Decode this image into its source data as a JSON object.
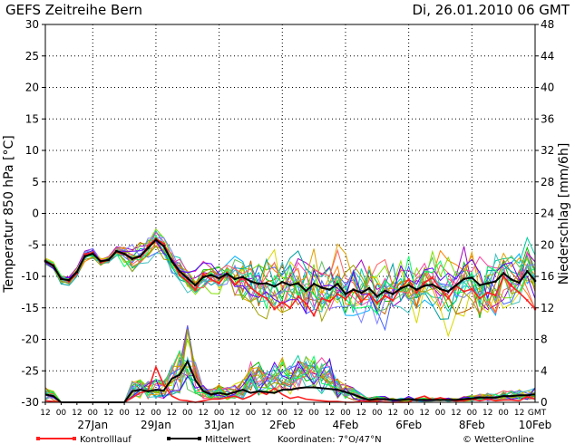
{
  "chart_data": {
    "type": "line",
    "title": "GEFS Zeitreihe Bern",
    "run_label": "Di, 26.01.2010 06 GMT",
    "ylabel_left": "Temperatur 850 hPa [°C]",
    "ylabel_right": "Niederschlag [mm/6h]",
    "ylim_left": [
      -30,
      30
    ],
    "ylim_right": [
      0,
      48
    ],
    "y_ticks_left": [
      30,
      25,
      20,
      15,
      10,
      5,
      0,
      -5,
      -10,
      -15,
      -20,
      -25,
      -30
    ],
    "y_ticks_right": [
      48,
      44,
      40,
      36,
      32,
      28,
      24,
      20,
      16,
      12,
      8,
      4,
      0
    ],
    "x_range_hours": [
      0,
      372
    ],
    "hour_labels": [
      "12",
      "00",
      "12",
      "00",
      "12",
      "00",
      "12",
      "00",
      "12",
      "00",
      "12",
      "00",
      "12",
      "00",
      "12",
      "00",
      "12",
      "00",
      "12",
      "00",
      "12",
      "00",
      "12",
      "00",
      "12",
      "00",
      "12",
      "00",
      "12",
      "00",
      "12"
    ],
    "end_label": "GMT",
    "date_labels": [
      "27Jan",
      "29Jan",
      "31Jan",
      "2Feb",
      "4Feb",
      "6Feb",
      "8Feb",
      "10Feb"
    ],
    "grid": true,
    "series": [
      {
        "name": "Kontrolllauf",
        "color": "#ff2020",
        "temperature": [
          -7.5,
          -8.2,
          -10.3,
          -10.8,
          -9.5,
          -6.5,
          -6.2,
          -7.8,
          -7.4,
          -6.1,
          -6.5,
          -7.3,
          -6.9,
          -5.2,
          -4.0,
          -4.8,
          -7.5,
          -9.8,
          -10.8,
          -12.1,
          -9.6,
          -10.5,
          -11.1,
          -9.5,
          -11.3,
          -10.2,
          -11.8,
          -12.8,
          -13.5,
          -15.2,
          -14.1,
          -15.0,
          -13.2,
          -14.3,
          -16.2,
          -13.5,
          -14.0,
          -12.8,
          -13.6,
          -12.1,
          -14.0,
          -12.8,
          -14.2,
          -13.1,
          -13.8,
          -11.8,
          -10.5,
          -12.6,
          -11.0,
          -10.2,
          -12.0,
          -13.5,
          -11.5,
          -12.4,
          -12.0,
          -13.5,
          -12.6,
          -13.0,
          -10.0,
          -11.5,
          -12.6,
          -13.8,
          -15.2
        ],
        "precipitation": [
          0.2,
          0.1,
          0,
          0,
          0,
          0,
          0,
          0,
          0,
          0,
          0,
          0.6,
          1.2,
          1.5,
          4.5,
          2.2,
          0.8,
          0.3,
          0.2,
          0,
          0.2,
          0.4,
          0.4,
          0.6,
          0.8,
          0.4,
          0.8,
          1.4,
          1.0,
          1.8,
          1.0,
          0.5,
          0.7,
          0.4,
          0.3,
          0.2,
          0.1,
          0.1,
          0,
          0,
          0.2,
          0.1,
          0.1,
          0,
          0,
          0,
          0,
          0.5,
          0.8,
          0.3,
          0.6,
          0.3,
          0.2,
          0.2,
          0.4,
          0.2,
          0.4,
          0.2,
          0.3,
          0.3,
          0.2,
          0.7,
          0.4
        ]
      },
      {
        "name": "Mittelwert",
        "color": "#000000",
        "temperature": [
          -7.6,
          -8.3,
          -10.4,
          -10.6,
          -9.3,
          -6.8,
          -6.4,
          -7.6,
          -7.4,
          -6.0,
          -6.4,
          -7.2,
          -6.8,
          -5.5,
          -4.2,
          -5.2,
          -7.6,
          -9.2,
          -10.3,
          -11.4,
          -10.1,
          -9.8,
          -10.3,
          -9.6,
          -10.4,
          -10.1,
          -10.8,
          -11.2,
          -11.1,
          -11.6,
          -10.9,
          -11.4,
          -11.1,
          -12.3,
          -11.2,
          -11.8,
          -12.1,
          -11.2,
          -12.8,
          -12.1,
          -12.6,
          -11.9,
          -13.2,
          -12.3,
          -12.8,
          -11.9,
          -11.4,
          -12.1,
          -11.5,
          -11.3,
          -12.0,
          -12.4,
          -11.4,
          -10.4,
          -10.2,
          -11.4,
          -11.1,
          -10.8,
          -9.5,
          -10.5,
          -11.0,
          -9.2,
          -10.7
        ],
        "precipitation": [
          1.0,
          0.8,
          0,
          0,
          0,
          0,
          0,
          0,
          0,
          0,
          0,
          1.4,
          1.6,
          1.4,
          1.6,
          1.5,
          3.0,
          3.5,
          5.2,
          2.8,
          1.4,
          1.0,
          1.2,
          1.0,
          1.3,
          1.6,
          1.2,
          1.4,
          1.3,
          1.2,
          1.6,
          1.6,
          1.8,
          1.9,
          1.9,
          1.8,
          1.7,
          1.6,
          1.3,
          1.0,
          0.6,
          0.3,
          0.4,
          0.4,
          0.3,
          0.3,
          0.4,
          0.3,
          0.3,
          0.3,
          0.3,
          0.3,
          0.3,
          0.4,
          0.5,
          0.6,
          0.6,
          0.6,
          0.8,
          0.8,
          0.9,
          0.9,
          1.0
        ]
      }
    ],
    "legend": {
      "entries": [
        "Kontrolllauf",
        "Mittelwert"
      ],
      "coordinates": "Koordinaten: 7°O/47°N",
      "credit": "© WetterOnline"
    }
  }
}
